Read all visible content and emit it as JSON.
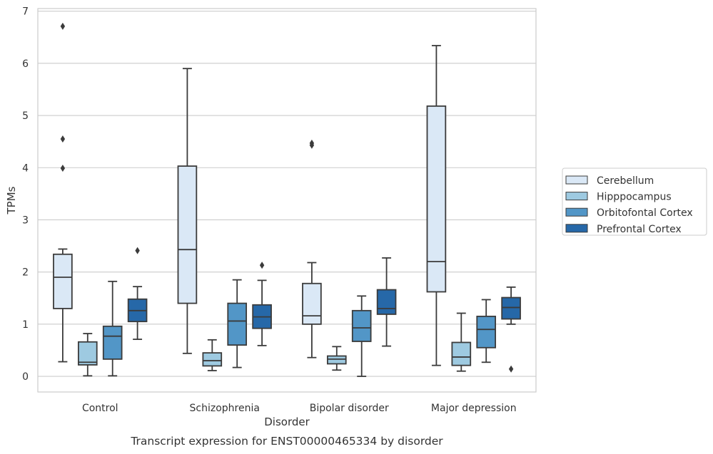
{
  "caption": "Transcript expression for ENST00000465334 by disorder",
  "chart_data": {
    "type": "box",
    "xlabel": "Disorder",
    "ylabel": "TPMs",
    "ylim": [
      -0.3,
      7.05
    ],
    "yticks": [
      0,
      1,
      2,
      3,
      4,
      5,
      6,
      7
    ],
    "grid": "horizontal",
    "legend_position": "right",
    "categories": [
      "Control",
      "Schizophrenia",
      "Bipolar disorder",
      "Major depression"
    ],
    "series": [
      {
        "name": "Cerebellum",
        "color": "#dae8f6",
        "boxes": [
          {
            "whisker_low": 0.28,
            "q1": 1.3,
            "median": 1.9,
            "q3": 2.34,
            "whisker_high": 2.44,
            "outliers": [
              3.99,
              4.55,
              6.71
            ]
          },
          {
            "whisker_low": 0.44,
            "q1": 1.4,
            "median": 2.43,
            "q3": 4.03,
            "whisker_high": 5.9,
            "outliers": []
          },
          {
            "whisker_low": 0.36,
            "q1": 1.0,
            "median": 1.16,
            "q3": 1.78,
            "whisker_high": 2.18,
            "outliers": [
              4.43,
              4.47
            ]
          },
          {
            "whisker_low": 0.21,
            "q1": 1.62,
            "median": 2.2,
            "q3": 5.18,
            "whisker_high": 6.34,
            "outliers": []
          }
        ]
      },
      {
        "name": "Hipppocampus",
        "color": "#9ecae1",
        "boxes": [
          {
            "whisker_low": 0.01,
            "q1": 0.22,
            "median": 0.27,
            "q3": 0.66,
            "whisker_high": 0.82,
            "outliers": []
          },
          {
            "whisker_low": 0.11,
            "q1": 0.2,
            "median": 0.3,
            "q3": 0.45,
            "whisker_high": 0.7,
            "outliers": []
          },
          {
            "whisker_low": 0.12,
            "q1": 0.24,
            "median": 0.33,
            "q3": 0.39,
            "whisker_high": 0.57,
            "outliers": []
          },
          {
            "whisker_low": 0.1,
            "q1": 0.21,
            "median": 0.37,
            "q3": 0.65,
            "whisker_high": 1.21,
            "outliers": []
          }
        ]
      },
      {
        "name": "Orbitofontal Cortex",
        "color": "#5296c7",
        "boxes": [
          {
            "whisker_low": 0.01,
            "q1": 0.33,
            "median": 0.77,
            "q3": 0.96,
            "whisker_high": 1.82,
            "outliers": []
          },
          {
            "whisker_low": 0.17,
            "q1": 0.6,
            "median": 1.06,
            "q3": 1.4,
            "whisker_high": 1.85,
            "outliers": []
          },
          {
            "whisker_low": 0.0,
            "q1": 0.67,
            "median": 0.93,
            "q3": 1.26,
            "whisker_high": 1.54,
            "outliers": []
          },
          {
            "whisker_low": 0.27,
            "q1": 0.55,
            "median": 0.9,
            "q3": 1.15,
            "whisker_high": 1.47,
            "outliers": []
          }
        ]
      },
      {
        "name": "Prefrontal Cortex",
        "color": "#2668a8",
        "boxes": [
          {
            "whisker_low": 0.71,
            "q1": 1.05,
            "median": 1.26,
            "q3": 1.48,
            "whisker_high": 1.72,
            "outliers": [
              2.41
            ]
          },
          {
            "whisker_low": 0.59,
            "q1": 0.92,
            "median": 1.14,
            "q3": 1.37,
            "whisker_high": 1.84,
            "outliers": [
              2.13
            ]
          },
          {
            "whisker_low": 0.58,
            "q1": 1.19,
            "median": 1.3,
            "q3": 1.66,
            "whisker_high": 2.27,
            "outliers": []
          },
          {
            "whisker_low": 1.0,
            "q1": 1.1,
            "median": 1.32,
            "q3": 1.51,
            "whisker_high": 1.71,
            "outliers": [
              0.14
            ]
          }
        ]
      }
    ]
  }
}
